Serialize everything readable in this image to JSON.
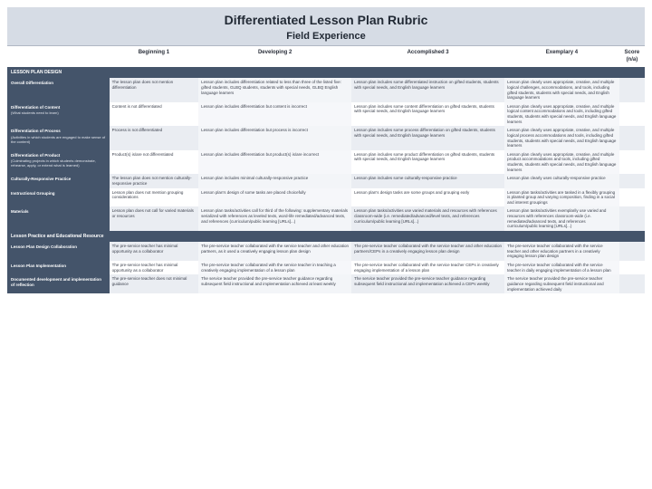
{
  "title": "Differentiated Lesson Plan Rubric",
  "subtitle": "Field Experience",
  "columns": [
    "",
    "Beginning\n1",
    "Developing\n2",
    "Accomplished\n3",
    "Exemplary\n4",
    "Score (n/a)"
  ],
  "sections": [
    {
      "name": "LESSON PLAN DESIGN",
      "rows": [
        {
          "label": "Overall Differentiation",
          "cells": [
            "The lesson plan does not mention differentiation",
            "Lesson plan includes differentiation related to less than three of the listed five: gifted students, GLBQ students, students with special needs, GLBQ English language learners",
            "Lesson plan includes some differentiated instruction on gifted students, students with special needs, and English language learners",
            "Lesson plan clearly uses appropriate, creative, and multiple logical challenges, accommodations, and tools, including gifted students, students with special needs, and English language learners"
          ]
        },
        {
          "label": "Differentiation of Content",
          "sublabel": "(What students need to learn)",
          "cells": [
            "Content is not differentiated",
            "Lesson plan includes differentiation but content is incorrect",
            "Lesson plan includes some content differentiation on gifted students, students with special needs, and English language learners",
            "Lesson plan clearly uses appropriate, creative, and multiple logical content accommodations and tools, including gifted students, students with special needs, and English language learners"
          ]
        },
        {
          "label": "Differentiation of Process",
          "sublabel": "(Activities in which students are engaged to make sense of the content)",
          "cells": [
            "Process is not differentiated",
            "Lesson plan includes differentiation but process is incorrect",
            "Lesson plan includes some process differentiation on gifted students, students with special needs, and English language learners",
            "Lesson plan clearly uses appropriate, creative, and multiple logical process accommodations and tools, including gifted students, students with special needs, and English language learners"
          ]
        },
        {
          "label": "Differentiation of Product",
          "sublabel": "(Culminating projects in which students demonstrate, rehearse, apply, or extend what is learned)",
          "cells": [
            "Product(s) is/are not differentiated",
            "Lesson plan includes differentiation but product(s) is/are incorrect",
            "Lesson plan includes some product differentiation on gifted students, students with special needs, and English language learners",
            "Lesson plan clearly uses appropriate, creative, and multiple product accommodations and tools, including gifted students, students with special needs, and English language learners"
          ]
        },
        {
          "label": "Culturally-Responsive Practice",
          "cells": [
            "The lesson plan does not mention culturally-responsive practice",
            "Lesson plan includes minimal culturally-responsive practice",
            "Lesson plan includes some culturally-responsive practice",
            "Lesson plan clearly uses culturally-responsive practice"
          ]
        },
        {
          "label": "Instructional Grouping",
          "cells": [
            "Lesson plan does not mention grouping considerations",
            "Lesson plan's design of some tasks are placed choicefully",
            "Lesson plan's design tasks are some groups and grouping early",
            "Lesson plan tasks/activities are tasked in a flexibly grouping is planted group and varying composition, finding in a social and interest groupings"
          ]
        },
        {
          "label": "Materials",
          "cells": [
            "Lesson plan does not call for varied materials or resources",
            "Lesson plan tasks/activities call for third of the following: supplementary materials serialized with references as leveled texts, word-life remediated/advanced texts, and references (curriculum/public learning [URLs]...)",
            "Lesson plan tasks/activities use varied materials and resources with references classroom-wide (i.e. remediated/advanced/level texts, and references curriculum/public learning [URLs]...)",
            "Lesson plan tasks/activities exemplarily use varied and resources with references classroom-wide (i.e. remediated/advanced texts, and references curriculum/public learning [URLs]...)"
          ]
        }
      ]
    },
    {
      "name": "Lesson Practice and Educational Resource",
      "rows": [
        {
          "label": "Lesson Plan Design Collaboration",
          "cells": [
            "The pre-service teacher has minimal opportunity as a collaborator",
            "The pre-service teacher collaborated with the service teacher and other education partners, as it used a creatively engaging lesson plan design",
            "The pre-service teacher collaborated with the service teacher and other education partners/CEPs in a creatively engaging lesson plan design",
            "The pre-service teacher collaborated with the service teacher and other education partners in a creatively engaging lesson plan design"
          ]
        },
        {
          "label": "Lesson Plan Implementation",
          "cells": [
            "The pre-service teacher has minimal opportunity as a collaborator",
            "The pre-service teacher collaborated with the service teacher in teaching a creatively engaging implementation of a lesson plan",
            "The pre-service teacher collaborated with the service teacher CEPs in creatively engaging implementation of a lesson plan",
            "The pre-service teacher collaborated with the service teacher in daily engaging implementation of a lesson plan"
          ]
        },
        {
          "label": "Documented development and implementation of reflection",
          "cells": [
            "The pre-service teacher does not minimal guidance",
            "The service teacher provided the pre-service teacher guidance regarding subsequent field instructional and implementation achieved at least weekly",
            "The service teacher provided the pre-service teacher guidance regarding subsequent field instructional and implementation achieved a CEPs weekly",
            "The service teacher provided the pre-service teacher guidance regarding subsequent field instructional and implementation achieved daily"
          ]
        }
      ]
    }
  ],
  "colors": {
    "title_band": "#d6dce5",
    "section_header": "#44546a",
    "alt_cell_a": "#eaedf2",
    "alt_cell_b": "#f3f5f8",
    "plain_cell_a": "#ffffff",
    "plain_cell_b": "#f6f7fa",
    "text": "#3a3f4b"
  }
}
